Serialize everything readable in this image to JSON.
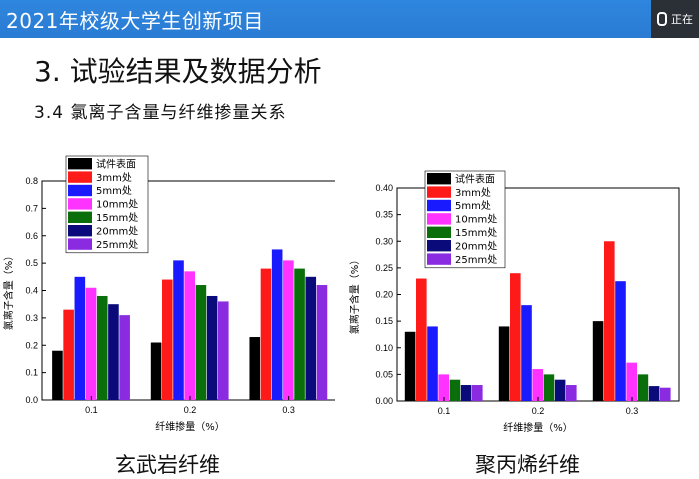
{
  "slide": {
    "banner_title": "2021年校级大学生创新项目",
    "recording_label": "正在",
    "heading": "3.  试验结果及数据分析",
    "subheading": "3.4 氯离子含量与纤维掺量关系",
    "left_caption": "玄武岩纤维",
    "right_caption": "聚丙烯纤维"
  },
  "legend_items": [
    "试件表面",
    "3mm处",
    "5mm处",
    "10mm处",
    "15mm处",
    "20mm处",
    "25mm处"
  ],
  "series_colors": [
    "#000000",
    "#ff1a1a",
    "#1a1aff",
    "#ff33ff",
    "#0a6e0a",
    "#0a0a7a",
    "#8a2be2"
  ],
  "chart_data": [
    {
      "type": "bar",
      "title": "",
      "xlabel": "纤维掺量（%）",
      "ylabel": "氯离子含量（%）",
      "categories": [
        "0.1",
        "0.2",
        "0.3"
      ],
      "ylim": [
        0,
        0.8
      ],
      "yticks": [
        "0.0",
        "0.1",
        "0.2",
        "0.3",
        "0.4",
        "0.5",
        "0.6",
        "0.7",
        "0.8"
      ],
      "series": [
        {
          "name": "试件表面",
          "values": [
            0.18,
            0.21,
            0.23
          ]
        },
        {
          "name": "3mm处",
          "values": [
            0.33,
            0.44,
            0.48
          ]
        },
        {
          "name": "5mm处",
          "values": [
            0.45,
            0.51,
            0.55
          ]
        },
        {
          "name": "10mm处",
          "values": [
            0.41,
            0.47,
            0.51
          ]
        },
        {
          "name": "15mm处",
          "values": [
            0.38,
            0.42,
            0.48
          ]
        },
        {
          "name": "20mm处",
          "values": [
            0.35,
            0.38,
            0.45
          ]
        },
        {
          "name": "25mm处",
          "values": [
            0.31,
            0.36,
            0.42
          ]
        }
      ]
    },
    {
      "type": "bar",
      "title": "",
      "xlabel": "纤维掺量（%）",
      "ylabel": "氯离子含量（%）",
      "categories": [
        "0.1",
        "0.2",
        "0.3"
      ],
      "ylim": [
        0,
        0.4
      ],
      "yticks": [
        "0.00",
        "0.05",
        "0.10",
        "0.15",
        "0.20",
        "0.25",
        "0.30",
        "0.35",
        "0.40"
      ],
      "series": [
        {
          "name": "试件表面",
          "values": [
            0.13,
            0.14,
            0.15
          ]
        },
        {
          "name": "3mm处",
          "values": [
            0.23,
            0.24,
            0.3
          ]
        },
        {
          "name": "5mm处",
          "values": [
            0.14,
            0.18,
            0.225
          ]
        },
        {
          "name": "10mm处",
          "values": [
            0.05,
            0.06,
            0.072
          ]
        },
        {
          "name": "15mm处",
          "values": [
            0.04,
            0.05,
            0.05
          ]
        },
        {
          "name": "20mm处",
          "values": [
            0.03,
            0.04,
            0.028
          ]
        },
        {
          "name": "25mm处",
          "values": [
            0.03,
            0.03,
            0.025
          ]
        }
      ]
    }
  ]
}
